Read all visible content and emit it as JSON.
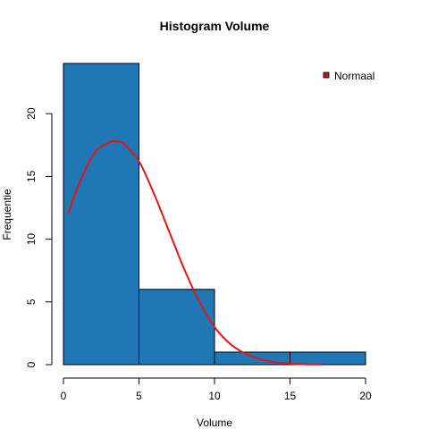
{
  "chart_data": {
    "type": "bar",
    "title": "Histogram Volume",
    "xlabel": "Volume",
    "ylabel": "Frequentie",
    "xlim": [
      0,
      20
    ],
    "ylim": [
      0,
      24
    ],
    "xticks": [
      0,
      5,
      10,
      15,
      20
    ],
    "yticks": [
      0,
      5,
      10,
      15,
      20
    ],
    "bins": [
      {
        "from": 0,
        "to": 5,
        "count": 24
      },
      {
        "from": 5,
        "to": 10,
        "count": 6
      },
      {
        "from": 10,
        "to": 15,
        "count": 1
      },
      {
        "from": 15,
        "to": 20,
        "count": 1
      }
    ],
    "bar_color": "#1f77b4",
    "bar_border_color": "#000000",
    "curve": {
      "name": "Normaal",
      "color": "#e3141b",
      "points": [
        {
          "x": 0.3,
          "y": 12.0
        },
        {
          "x": 1.0,
          "y": 14.3
        },
        {
          "x": 2.0,
          "y": 16.8
        },
        {
          "x": 3.0,
          "y": 17.7
        },
        {
          "x": 3.5,
          "y": 17.8
        },
        {
          "x": 4.0,
          "y": 17.6
        },
        {
          "x": 5.0,
          "y": 16.2
        },
        {
          "x": 6.0,
          "y": 13.6
        },
        {
          "x": 7.0,
          "y": 10.6
        },
        {
          "x": 8.0,
          "y": 7.6
        },
        {
          "x": 9.0,
          "y": 5.0
        },
        {
          "x": 10.0,
          "y": 3.0
        },
        {
          "x": 11.0,
          "y": 1.7
        },
        {
          "x": 12.0,
          "y": 0.9
        },
        {
          "x": 13.0,
          "y": 0.45
        },
        {
          "x": 14.0,
          "y": 0.2
        },
        {
          "x": 15.0,
          "y": 0.08
        },
        {
          "x": 16.0,
          "y": 0.03
        },
        {
          "x": 17.1,
          "y": 0.01
        }
      ]
    },
    "legend": {
      "position": "top-right",
      "entries": [
        {
          "label": "Normaal",
          "color": "#c0141b"
        }
      ]
    }
  }
}
